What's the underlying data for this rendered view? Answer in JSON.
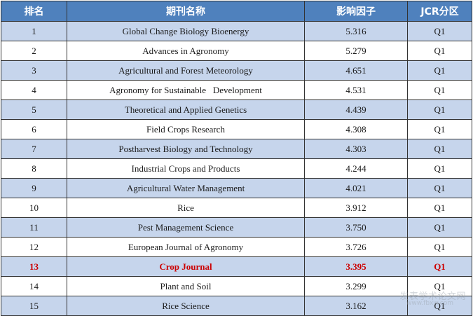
{
  "table": {
    "headers": [
      "排名",
      "期刊名称",
      "影响因子",
      "JCR分区"
    ],
    "rows": [
      {
        "rank": "1",
        "name": "Global Change Biology Bioenergy",
        "impact_factor": "5.316",
        "jcr": "Q1"
      },
      {
        "rank": "2",
        "name": "Advances in Agronomy",
        "impact_factor": "5.279",
        "jcr": "Q1"
      },
      {
        "rank": "3",
        "name": "Agricultural and Forest Meteorology",
        "impact_factor": "4.651",
        "jcr": "Q1"
      },
      {
        "rank": "4",
        "name": "Agronomy for Sustainable   Development",
        "impact_factor": "4.531",
        "jcr": "Q1"
      },
      {
        "rank": "5",
        "name": "Theoretical and Applied Genetics",
        "impact_factor": "4.439",
        "jcr": "Q1"
      },
      {
        "rank": "6",
        "name": "Field Crops Research",
        "impact_factor": "4.308",
        "jcr": "Q1"
      },
      {
        "rank": "7",
        "name": "Postharvest Biology and Technology",
        "impact_factor": "4.303",
        "jcr": "Q1"
      },
      {
        "rank": "8",
        "name": "Industrial Crops and Products",
        "impact_factor": "4.244",
        "jcr": "Q1"
      },
      {
        "rank": "9",
        "name": "Agricultural Water Management",
        "impact_factor": "4.021",
        "jcr": "Q1"
      },
      {
        "rank": "10",
        "name": "Rice",
        "impact_factor": "3.912",
        "jcr": "Q1"
      },
      {
        "rank": "11",
        "name": "Pest Management Science",
        "impact_factor": "3.750",
        "jcr": "Q1"
      },
      {
        "rank": "12",
        "name": "European Journal of Agronomy",
        "impact_factor": "3.726",
        "jcr": "Q1"
      },
      {
        "rank": "13",
        "name": "Crop Journal",
        "impact_factor": "3.395",
        "jcr": "Q1",
        "highlighted": true
      },
      {
        "rank": "14",
        "name": "Plant and Soil",
        "impact_factor": "3.299",
        "jcr": "Q1"
      },
      {
        "rank": "15",
        "name": "Rice Science",
        "impact_factor": "3.162",
        "jcr": "Q1"
      }
    ]
  },
  "colors": {
    "header_bg": "#4f81bd",
    "band_bg": "#c6d5ec",
    "highlight_text": "#cc0000"
  },
  "watermark": {
    "main": "发表学术论文网",
    "url": "www.fbxw.com"
  }
}
